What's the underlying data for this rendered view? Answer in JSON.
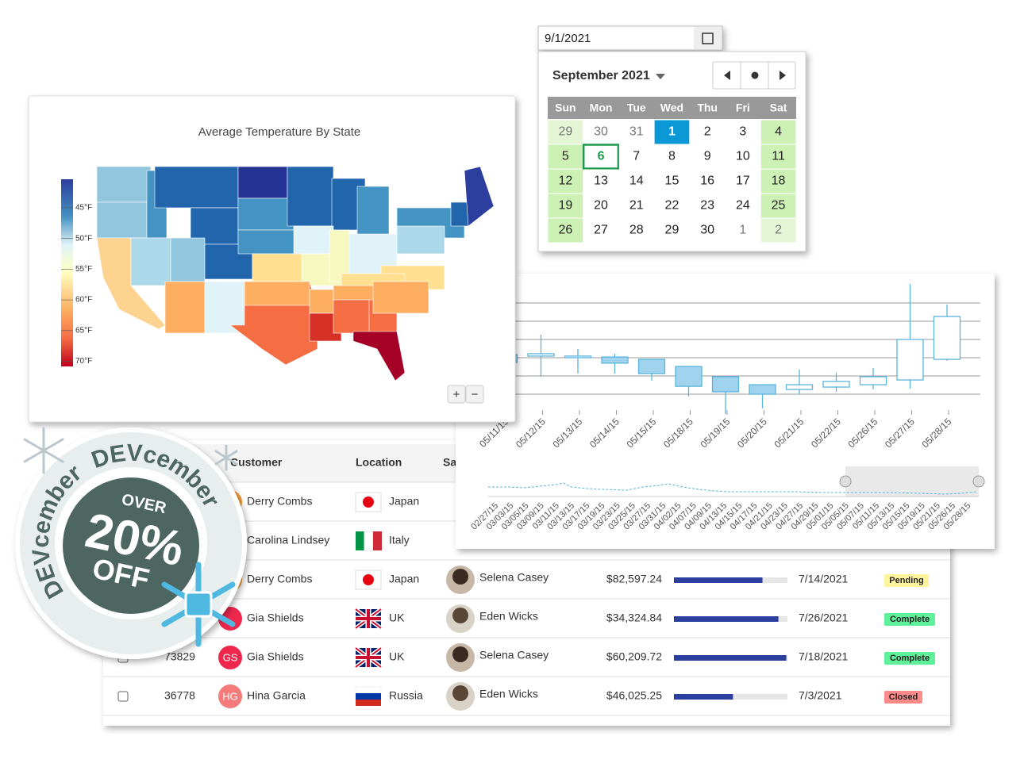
{
  "date_picker": {
    "input": "9/1/2021",
    "month": "September 2021",
    "weekdays": [
      "Sun",
      "Mon",
      "Tue",
      "Wed",
      "Thu",
      "Fri",
      "Sat"
    ],
    "days": [
      29,
      30,
      31,
      1,
      2,
      3,
      4,
      5,
      6,
      7,
      8,
      9,
      10,
      11,
      12,
      13,
      14,
      15,
      16,
      17,
      18,
      19,
      20,
      21,
      22,
      23,
      24,
      25,
      26,
      27,
      28,
      29,
      30,
      1,
      2
    ]
  },
  "map": {
    "title": "Average Temperature By State",
    "legend": [
      "45°F",
      "50°F",
      "55°F",
      "60°F",
      "65°F",
      "70°F"
    ],
    "zoom": [
      "+",
      "−"
    ]
  },
  "chart_data": {
    "type": "candlestick",
    "categories": [
      "05/11/15",
      "05/12/15",
      "05/13/15",
      "05/14/15",
      "05/15/15",
      "05/18/15",
      "05/19/15",
      "05/20/15",
      "05/21/15",
      "05/22/15",
      "05/26/15",
      "05/27/15",
      "05/28/15"
    ],
    "open": [
      2.17,
      2.09,
      2.0,
      2.04,
      1.91,
      1.52,
      0.96,
      0.52,
      0.26,
      0.39,
      0.52,
      0.78,
      1.91
    ],
    "high": [
      2.48,
      3.26,
      2.48,
      2.22,
      1.91,
      1.52,
      0.96,
      0.52,
      1.35,
      1.17,
      1.43,
      6.04,
      4.91
    ],
    "low": [
      1.39,
      0.96,
      1.13,
      1.13,
      0.74,
      -0.13,
      -1.09,
      -0.78,
      0.0,
      0.13,
      0.26,
      0.3,
      1.83
    ],
    "close": [
      1.74,
      2.22,
      2.09,
      1.7,
      1.13,
      0.43,
      0.13,
      0.0,
      0.52,
      0.7,
      0.96,
      3.0,
      4.26
    ],
    "ylim": [
      -1.2,
      6.2
    ],
    "yticks": [
      0,
      1,
      2,
      3,
      4,
      5
    ],
    "grid": true,
    "navigator_labels": [
      "02/27/15",
      "03/03/15",
      "03/05/15",
      "03/09/15",
      "03/11/15",
      "03/13/15",
      "03/17/15",
      "03/19/15",
      "03/23/15",
      "03/25/15",
      "03/27/15",
      "03/31/15",
      "04/02/15",
      "04/07/15",
      "04/09/15",
      "04/13/15",
      "04/15/15",
      "04/17/15",
      "04/21/15",
      "04/23/15",
      "04/27/15",
      "04/29/15",
      "05/01/15",
      "05/05/15",
      "05/07/15",
      "05/11/15",
      "05/13/15",
      "05/15/15",
      "05/19/15",
      "05/21/15",
      "05/26/15",
      "05/28/15"
    ]
  },
  "table": {
    "headers": [
      "Customer",
      "Location",
      "Sales Rep"
    ],
    "rows": [
      {
        "name": "Derry Combs",
        "location": "Japan"
      },
      {
        "name": "Carolina Lindsey",
        "location": "Italy"
      },
      {
        "name": "Derry Combs",
        "location": "Japan",
        "rep": "Selena Casey",
        "amount": "$82,597.24",
        "progress": 0.78,
        "date": "7/14/2021",
        "status": "Pending"
      },
      {
        "name": "Gia Shields",
        "location": "UK",
        "rep": "Eden Wicks",
        "amount": "$34,324.84",
        "progress": 0.92,
        "date": "7/26/2021",
        "status": "Complete"
      },
      {
        "id": 73829,
        "initials": "GS",
        "name": "Gia Shields",
        "location": "UK",
        "rep": "Selena Casey",
        "amount": "$60,209.72",
        "progress": 0.99,
        "date": "7/18/2021",
        "status": "Complete"
      },
      {
        "id": 36778,
        "initials": "HG",
        "name": "Hina Garcia",
        "location": "Russia",
        "rep": "Eden Wicks",
        "amount": "$46,025.25",
        "progress": 0.52,
        "date": "7/3/2021",
        "status": "Closed"
      }
    ]
  },
  "badge": {
    "ring": [
      "DEVcember",
      "DEVcember"
    ],
    "over": "OVER",
    "amount": "20%",
    "off": "OFF"
  }
}
